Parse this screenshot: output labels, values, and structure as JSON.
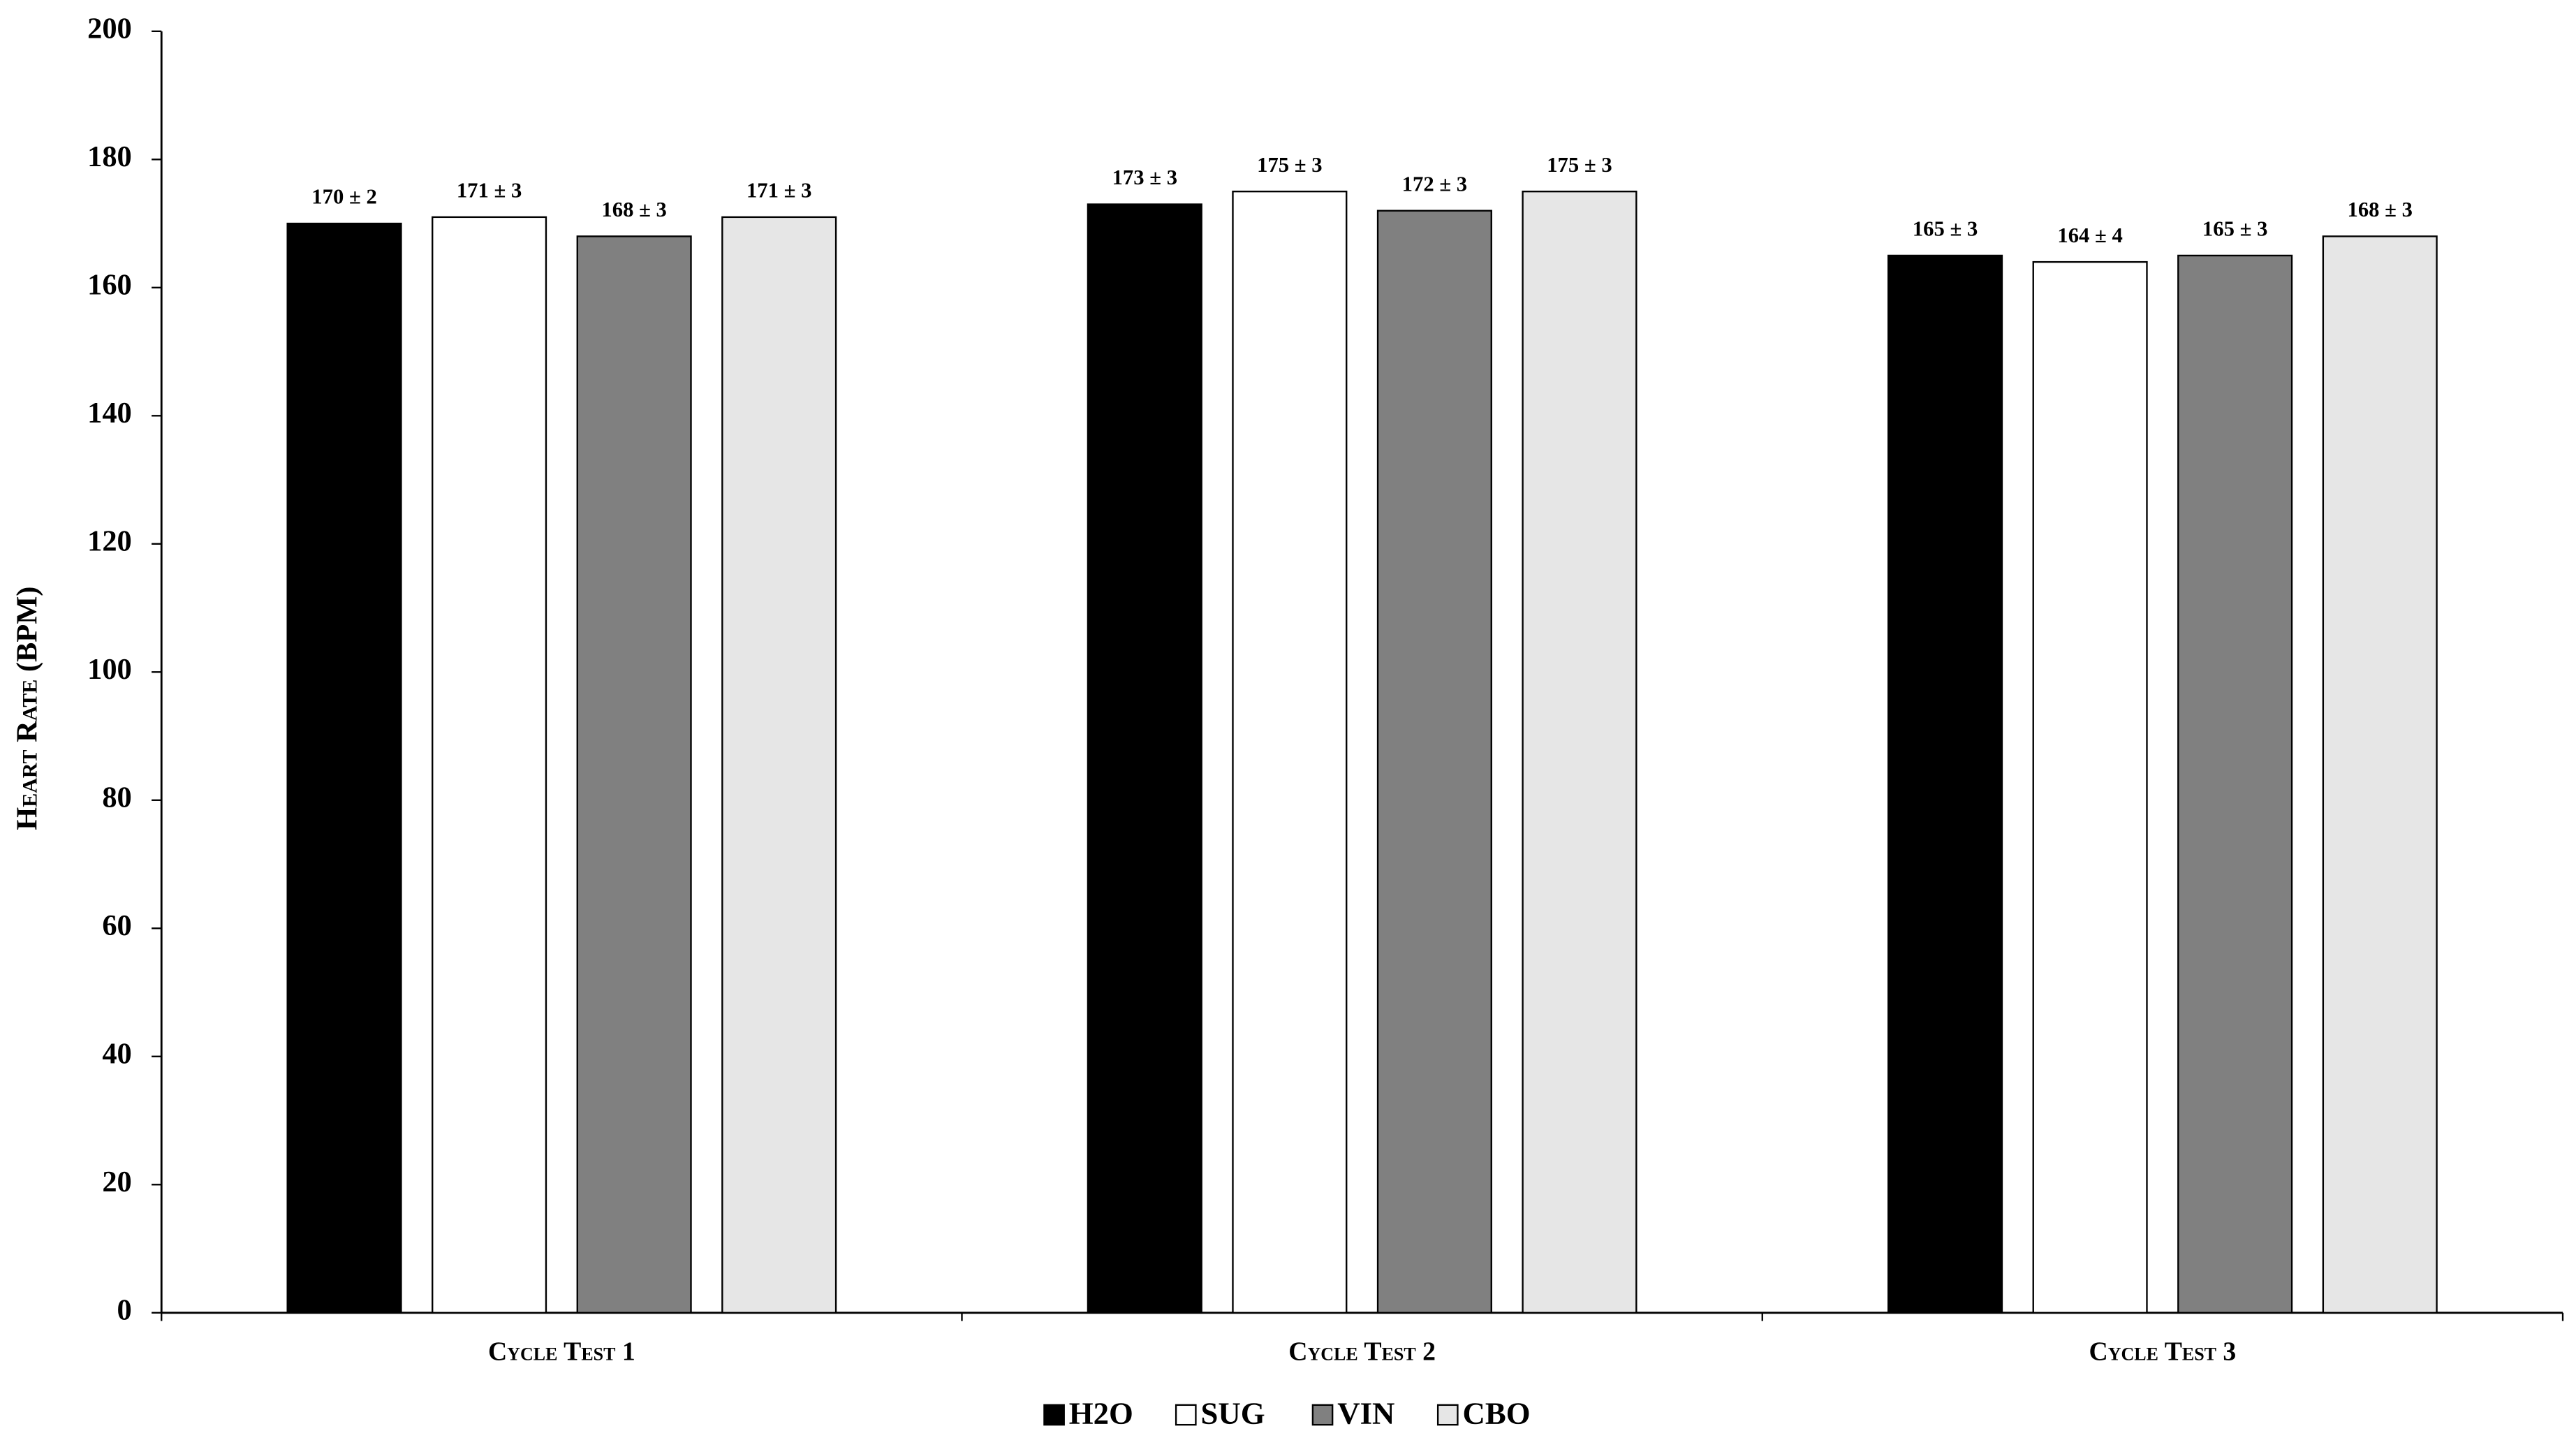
{
  "chart_data": {
    "type": "bar",
    "y_label": "Heart Rate (BPM)",
    "categories": [
      "Cycle Test 1",
      "Cycle Test 2",
      "Cycle Test 3"
    ],
    "series": [
      {
        "name": "H2O",
        "color": "#000000",
        "values": [
          170,
          173,
          165
        ],
        "value_labels": [
          "170 ± 2",
          "173 ± 3",
          "165 ± 3"
        ]
      },
      {
        "name": "SUG",
        "color": "#ffffff",
        "values": [
          171,
          175,
          164
        ],
        "value_labels": [
          "171 ± 3",
          "175 ± 3",
          "164 ± 4"
        ]
      },
      {
        "name": "VIN",
        "color": "#808080",
        "values": [
          168,
          172,
          165
        ],
        "value_labels": [
          "168 ± 3",
          "172 ± 3",
          "165 ± 3"
        ]
      },
      {
        "name": "CBO",
        "color": "#e6e6e6",
        "values": [
          171,
          175,
          168
        ],
        "value_labels": [
          "171 ± 3",
          "175 ± 3",
          "168 ± 3"
        ]
      }
    ],
    "ylim": [
      0,
      200
    ],
    "yticks": [
      0,
      20,
      40,
      60,
      80,
      100,
      120,
      140,
      160,
      180,
      200
    ],
    "legend": "bottom"
  }
}
